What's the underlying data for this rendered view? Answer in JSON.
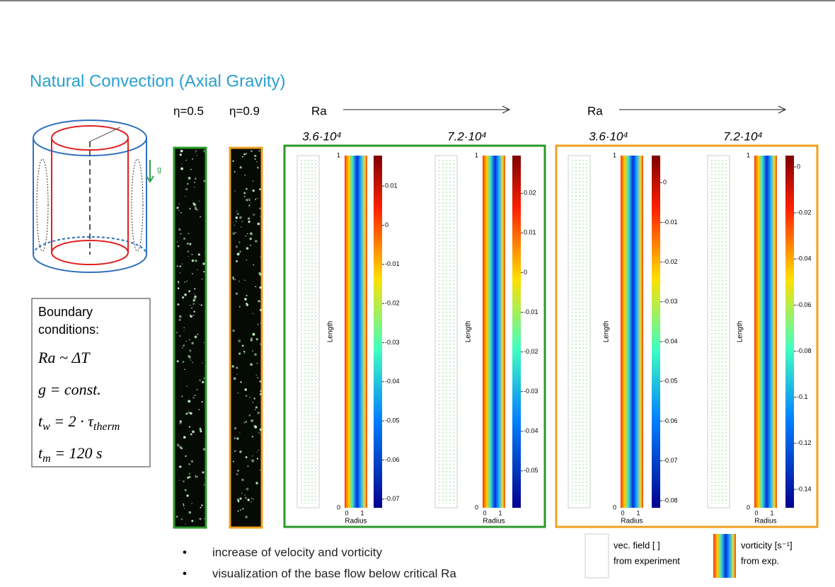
{
  "title": "Natural Convection (Axial Gravity)",
  "diagram": {
    "gravity_label": "g"
  },
  "boundary_conditions": {
    "heading": [
      "Boundary",
      "conditions:"
    ],
    "formulas": [
      [
        {
          "text": "Ra ~ ΔT"
        }
      ],
      [
        {
          "text": "g = const."
        }
      ],
      [
        {
          "text": "t"
        },
        {
          "sub": "w"
        },
        {
          "text": " = 2 · τ"
        },
        {
          "sub": "therm"
        }
      ],
      [
        {
          "text": "t"
        },
        {
          "sub": "m"
        },
        {
          "text": " = 120 s"
        }
      ]
    ]
  },
  "eta_labels": [
    "η=0.5",
    "η=0.9"
  ],
  "axis": {
    "y_label": "Length",
    "x_label": "Radius",
    "yticks": [
      0,
      1
    ],
    "xticks": [
      0,
      1
    ]
  },
  "groups": [
    {
      "ra_label": "Ra",
      "plots": [
        {
          "ra_value": "3.6·10⁴",
          "colorbar": {
            "clim": [
              -0.0722,
              0.0178
            ],
            "ticks": [
              0.01,
              0,
              -0.01,
              -0.02,
              -0.03,
              -0.04,
              -0.05,
              -0.06,
              -0.07
            ]
          }
        },
        {
          "ra_value": "7.2·10⁴",
          "colorbar": {
            "clim": [
              -0.0593,
              0.0295
            ],
            "ticks": [
              0.02,
              0.01,
              0,
              -0.01,
              -0.02,
              -0.03,
              -0.04,
              -0.05
            ]
          }
        }
      ]
    },
    {
      "ra_label": "Ra",
      "plots": [
        {
          "ra_value": "3.6·10⁴",
          "colorbar": {
            "clim": [
              -0.0818,
              0.0068
            ],
            "ticks": [
              0,
              -0.01,
              -0.02,
              -0.03,
              -0.04,
              -0.05,
              -0.06,
              -0.07,
              -0.08
            ]
          }
        },
        {
          "ra_value": "7.2·10⁴",
          "colorbar": {
            "clim": [
              -0.148,
              0.0049
            ],
            "ticks": [
              0,
              -0.02,
              -0.04,
              -0.06,
              -0.08,
              -0.1,
              -0.12,
              -0.14
            ]
          }
        }
      ]
    }
  ],
  "legend": {
    "vector": [
      "vec. field [ ]",
      "from experiment"
    ],
    "vorticity": [
      "vorticity [s⁻¹]",
      "from exp."
    ]
  },
  "bullets": [
    "increase of velocity and vorticity",
    "visualization of the base flow below critical Ra"
  ]
}
